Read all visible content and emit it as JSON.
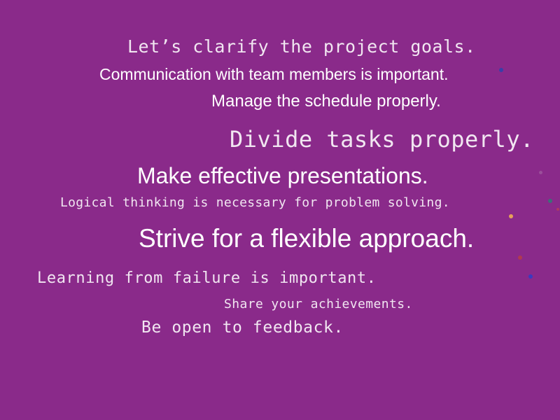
{
  "lines": [
    {
      "text": "Let’s clarify the project goals."
    },
    {
      "text": "Communication with team members is important."
    },
    {
      "text": "Manage the schedule properly."
    },
    {
      "text": "Divide tasks properly."
    },
    {
      "text": "Make effective presentations."
    },
    {
      "text": "Logical thinking is necessary for problem solving."
    },
    {
      "text": "Strive for a flexible approach."
    },
    {
      "text": "Learning from failure is important."
    },
    {
      "text": "Share your achievements."
    },
    {
      "text": "Be open to feedback."
    }
  ],
  "colors": {
    "background": "#8a2a8a",
    "text": "#ffffff"
  }
}
